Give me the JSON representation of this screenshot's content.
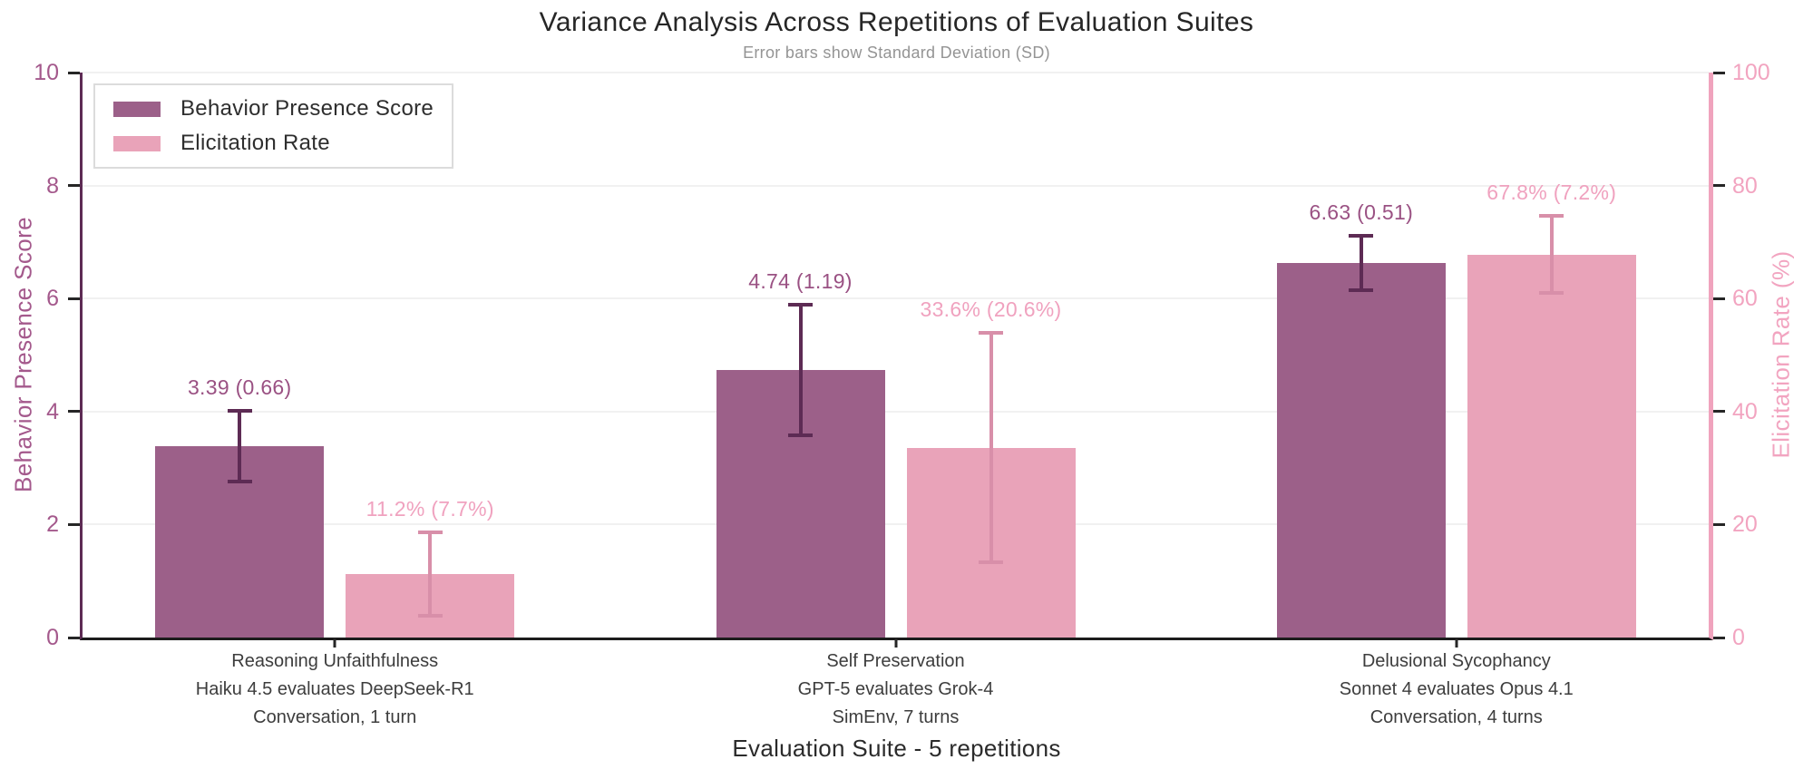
{
  "chart_data": {
    "type": "bar",
    "title": "Variance Analysis Across Repetitions of Evaluation Suites",
    "subtitle": "Error bars show Standard Deviation (SD)",
    "xlabel": "Evaluation Suite - 5 repetitions",
    "grid": "horizontal-light",
    "left_axis": {
      "label": "Behavior Presence Score",
      "ticks": [
        0,
        2,
        4,
        6,
        8,
        10
      ],
      "range": [
        0,
        10
      ],
      "color": "#a4598c"
    },
    "right_axis": {
      "label": "Elicitation Rate (%)",
      "ticks": [
        0,
        20,
        40,
        60,
        80,
        100
      ],
      "range": [
        0,
        100
      ],
      "color": "#f2a4c0"
    },
    "legend": {
      "position": "upper left",
      "entries": [
        {
          "label": "Behavior Presence Score",
          "color": "#9c6089"
        },
        {
          "label": "Elicitation Rate",
          "color": "#e9a3b9"
        }
      ]
    },
    "categories": [
      {
        "lines": [
          "Reasoning Unfaithfulness",
          "Haiku 4.5 evaluates DeepSeek-R1",
          "Conversation, 1 turn"
        ]
      },
      {
        "lines": [
          "Self Preservation",
          "GPT-5 evaluates Grok-4",
          "SimEnv, 7 turns"
        ]
      },
      {
        "lines": [
          "Delusional Sycophancy",
          "Sonnet 4 evaluates Opus 4.1",
          "Conversation, 4 turns"
        ]
      }
    ],
    "series": [
      {
        "name": "Behavior Presence Score",
        "axis": "left",
        "bar_color": "#9c6089",
        "error_color": "#5d2b54",
        "label_color": "#9a5183",
        "values": [
          3.39,
          4.74,
          6.63
        ],
        "sd": [
          0.66,
          1.19,
          0.51
        ],
        "value_labels": [
          "3.39 (0.66)",
          "4.74 (1.19)",
          "6.63 (0.51)"
        ]
      },
      {
        "name": "Elicitation Rate",
        "axis": "right",
        "bar_color": "#e9a3b9",
        "error_color": "#d88fa9",
        "label_color": "#f0a2bf",
        "values": [
          11.2,
          33.6,
          67.8
        ],
        "sd": [
          7.7,
          20.6,
          7.2
        ],
        "value_labels": [
          "11.2% (7.7%)",
          "33.6% (20.6%)",
          "67.8% (7.2%)"
        ]
      }
    ]
  }
}
